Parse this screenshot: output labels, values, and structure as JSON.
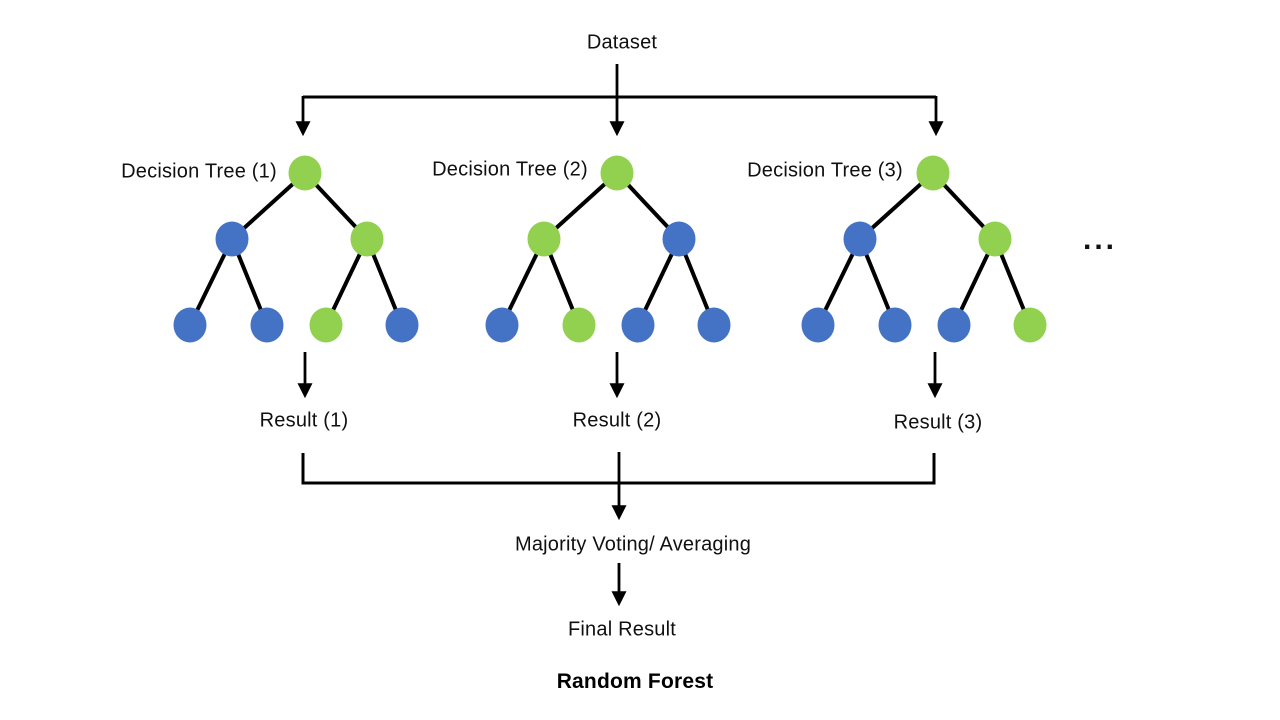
{
  "diagram_title": "Random Forest",
  "dataset_label": "Dataset",
  "ellipsis": "...",
  "colors": {
    "green": "#92D050",
    "blue": "#4472C4",
    "line": "#000000"
  },
  "trees": [
    {
      "label": "Decision Tree (1)",
      "result": "Result (1)",
      "nodes": [
        "green",
        "blue",
        "green",
        "blue",
        "blue",
        "green",
        "blue"
      ]
    },
    {
      "label": "Decision Tree (2)",
      "result": "Result (2)",
      "nodes": [
        "green",
        "green",
        "blue",
        "blue",
        "green",
        "blue",
        "blue"
      ]
    },
    {
      "label": "Decision Tree (3)",
      "result": "Result (3)",
      "nodes": [
        "green",
        "blue",
        "green",
        "blue",
        "blue",
        "blue",
        "green"
      ]
    }
  ],
  "aggregation": {
    "majority_label": "Majority Voting/ Averaging",
    "final_label": "Final Result"
  }
}
